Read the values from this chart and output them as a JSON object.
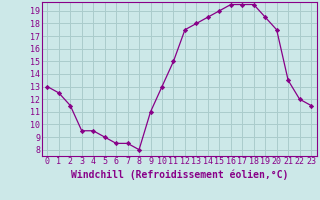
{
  "x": [
    0,
    1,
    2,
    3,
    4,
    5,
    6,
    7,
    8,
    9,
    10,
    11,
    12,
    13,
    14,
    15,
    16,
    17,
    18,
    19,
    20,
    21,
    22,
    23
  ],
  "y": [
    13,
    12.5,
    11.5,
    9.5,
    9.5,
    9.0,
    8.5,
    8.5,
    8.0,
    11.0,
    13.0,
    15.0,
    17.5,
    18.0,
    18.5,
    19.0,
    19.5,
    19.5,
    19.5,
    18.5,
    17.5,
    13.5,
    12.0,
    11.5
  ],
  "line_color": "#880088",
  "marker": "D",
  "marker_size": 2.2,
  "bg_color": "#cce8e8",
  "grid_color": "#aacccc",
  "xlabel": "Windchill (Refroidissement éolien,°C)",
  "xlabel_fontsize": 7,
  "xlim": [
    -0.5,
    23.5
  ],
  "ylim": [
    7.5,
    19.7
  ],
  "yticks": [
    8,
    9,
    10,
    11,
    12,
    13,
    14,
    15,
    16,
    17,
    18,
    19
  ],
  "xticks": [
    0,
    1,
    2,
    3,
    4,
    5,
    6,
    7,
    8,
    9,
    10,
    11,
    12,
    13,
    14,
    15,
    16,
    17,
    18,
    19,
    20,
    21,
    22,
    23
  ],
  "tick_fontsize": 6,
  "spine_color": "#880088"
}
